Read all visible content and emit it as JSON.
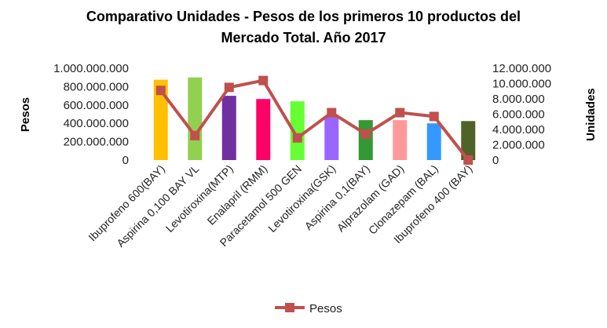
{
  "chart_data": {
    "type": "bar",
    "title": [
      "Comparativo Unidades - Pesos de los primeros 10 productos del",
      "Mercado Total. Año 2017"
    ],
    "categories": [
      "Ibuprofeno 600(BAY)",
      "Aspirina 0,100 BAY VL",
      "Levotiroxina(MTP)",
      "Enalapril (RMM)",
      "Paracetamol 500 GEN",
      "Levotiroxina(GSK)",
      "Aspirina 0,1(BAY)",
      "Alprazolam (GAD)",
      "Clonazepam (BAL)",
      "Ibuprofeno 400 (BAY)"
    ],
    "series": [
      {
        "kind": "bar",
        "axis": "left",
        "values": [
          875000000,
          900000000,
          700000000,
          665000000,
          640000000,
          475000000,
          435000000,
          435000000,
          400000000,
          425000000
        ],
        "colors": [
          "#FFC000",
          "#92D050",
          "#7030A0",
          "#FF0066",
          "#66FF33",
          "#9966FF",
          "#339933",
          "#FF9999",
          "#3399FF",
          "#4F6228"
        ]
      },
      {
        "kind": "line",
        "axis": "right",
        "name": "Pesos",
        "color": "#C0504D",
        "values": [
          9100000,
          3200000,
          9500000,
          10400000,
          2900000,
          6200000,
          3400000,
          6200000,
          5700000,
          0
        ]
      }
    ],
    "ylabel": "Pesos",
    "y2label": "Unidades",
    "ylim": [
      0,
      1000000000
    ],
    "y2lim": [
      0,
      12000000
    ],
    "yticks": [
      "0",
      "200.000.000",
      "400.000.000",
      "600.000.000",
      "800.000.000",
      "1.000.000.000"
    ],
    "y2ticks": [
      "0",
      "2.000.000",
      "4.000.000",
      "6.000.000",
      "8.000.000",
      "10.000.000",
      "12.000.000"
    ],
    "legend": {
      "position": "bottom",
      "entries": [
        "Pesos"
      ]
    },
    "grid": false
  }
}
